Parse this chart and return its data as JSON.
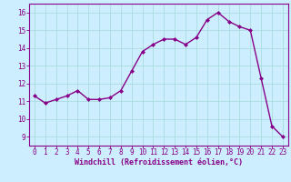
{
  "x": [
    0,
    1,
    2,
    3,
    4,
    5,
    6,
    7,
    8,
    9,
    10,
    11,
    12,
    13,
    14,
    15,
    16,
    17,
    18,
    19,
    20,
    21,
    22,
    23
  ],
  "y": [
    11.3,
    10.9,
    11.1,
    11.3,
    11.6,
    11.1,
    11.1,
    11.2,
    11.6,
    12.7,
    13.8,
    14.2,
    14.5,
    14.5,
    14.2,
    14.6,
    15.6,
    16.0,
    15.5,
    15.2,
    15.0,
    12.3,
    9.6,
    9.0
  ],
  "line_color": "#880088",
  "marker": "D",
  "marker_size": 2.0,
  "background_color": "#cceeff",
  "grid_color": "#aadddd",
  "xlabel": "Windchill (Refroidissement éolien,°C)",
  "xlabel_color": "#880088",
  "tick_color": "#880088",
  "spine_color": "#880088",
  "ylim": [
    8.5,
    16.5
  ],
  "xlim": [
    -0.5,
    23.5
  ],
  "yticks": [
    9,
    10,
    11,
    12,
    13,
    14,
    15,
    16
  ],
  "xticks": [
    0,
    1,
    2,
    3,
    4,
    5,
    6,
    7,
    8,
    9,
    10,
    11,
    12,
    13,
    14,
    15,
    16,
    17,
    18,
    19,
    20,
    21,
    22,
    23
  ],
  "tick_fontsize": 5.5,
  "xlabel_fontsize": 6.0,
  "linewidth": 1.0
}
